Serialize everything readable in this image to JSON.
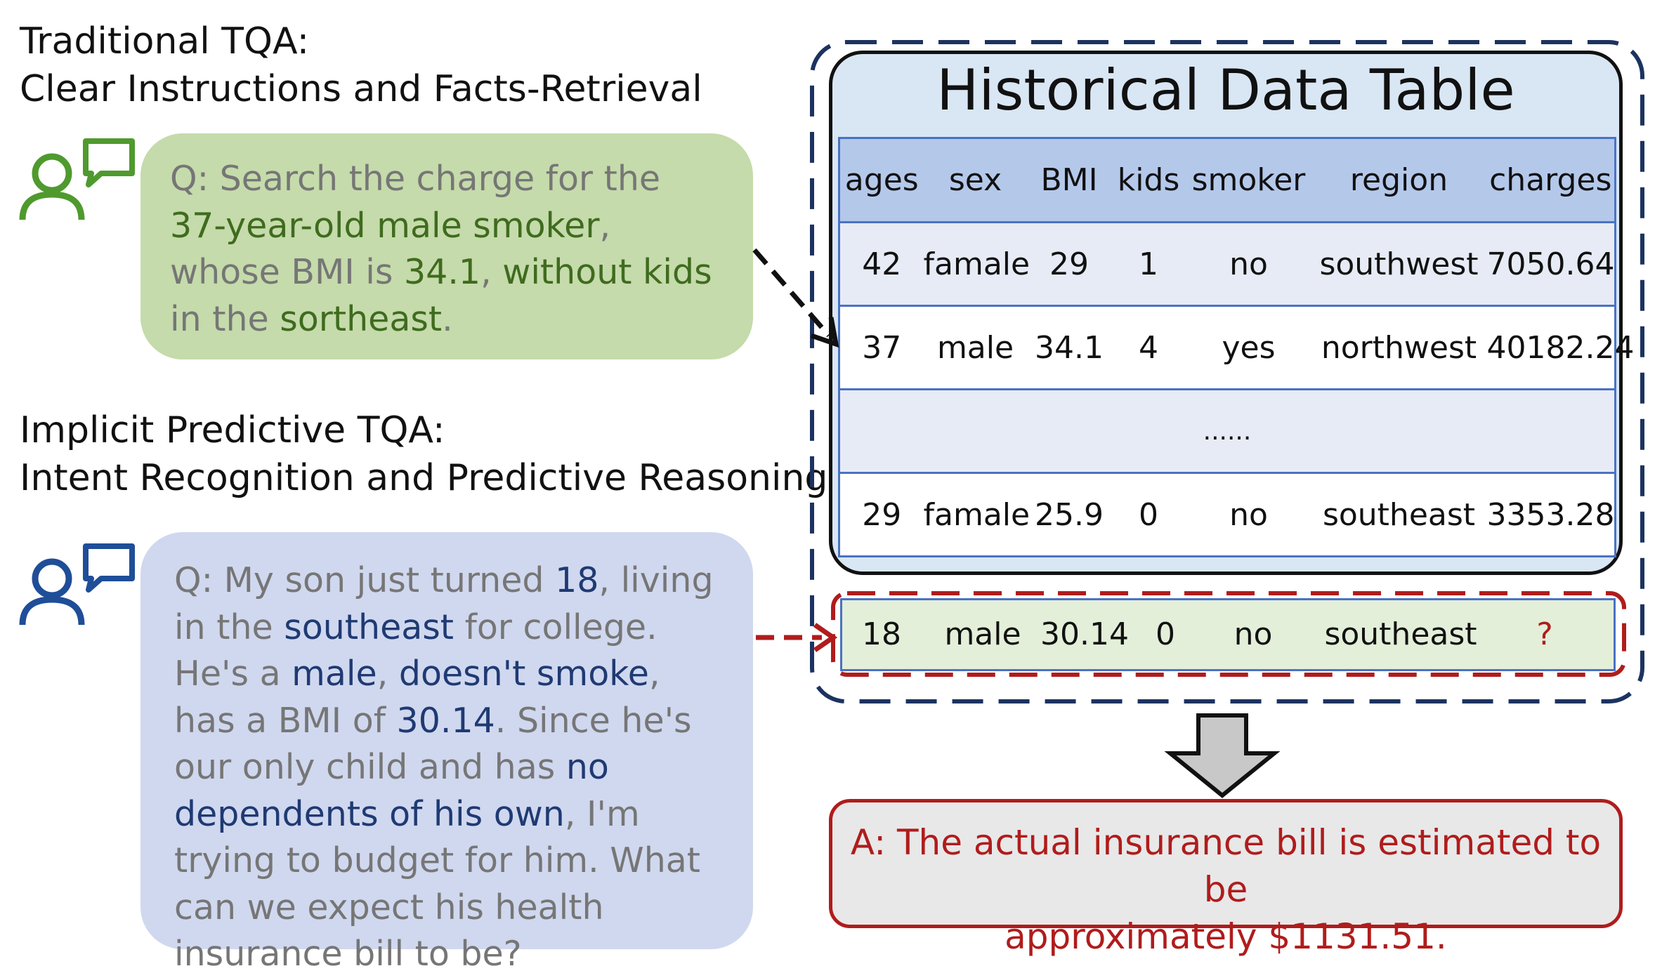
{
  "traditional": {
    "heading_line1": "Traditional TQA:",
    "heading_line2": "Clear Instructions and Facts-Retrieval",
    "question_parts": [
      {
        "text": "Q: Search the charge for the ",
        "hl": false
      },
      {
        "text": "37-year-old male smoker",
        "hl": true
      },
      {
        "text": ", whose BMI is ",
        "hl": false
      },
      {
        "text": "34.1",
        "hl": true
      },
      {
        "text": ", ",
        "hl": false
      },
      {
        "text": "without kids",
        "hl": true
      },
      {
        "text": " in the ",
        "hl": false
      },
      {
        "text": "sortheast",
        "hl": true
      },
      {
        "text": ".",
        "hl": false
      }
    ]
  },
  "implicit": {
    "heading_line1": "Implicit Predictive TQA:",
    "heading_line2": "Intent Recognition and Predictive Reasoning",
    "question_parts": [
      {
        "text": "Q: My son just turned ",
        "hl": false
      },
      {
        "text": "18",
        "hl": true
      },
      {
        "text": ", living in the ",
        "hl": false
      },
      {
        "text": "southeast",
        "hl": true
      },
      {
        "text": " for college. He's a ",
        "hl": false
      },
      {
        "text": "male",
        "hl": true
      },
      {
        "text": ", ",
        "hl": false
      },
      {
        "text": "doesn't smoke",
        "hl": true
      },
      {
        "text": ", has a BMI of ",
        "hl": false
      },
      {
        "text": "30.14",
        "hl": true
      },
      {
        "text": ". Since he's our only child and has ",
        "hl": false
      },
      {
        "text": "no dependents of his own",
        "hl": true
      },
      {
        "text": ", I'm trying to budget for him. What can we expect his health insurance bill to be?",
        "hl": false
      }
    ]
  },
  "table": {
    "title": "Historical Data Table",
    "headers": [
      "ages",
      "sex",
      "BMI",
      "kids",
      "smoker",
      "region",
      "charges"
    ],
    "rows": [
      [
        "42",
        "famale",
        "29",
        "1",
        "no",
        "southwest",
        "7050.64"
      ],
      [
        "37",
        "male",
        "34.1",
        "4",
        "yes",
        "northwest",
        "40182.24"
      ],
      [
        "......"
      ],
      [
        "29",
        "famale",
        "25.9",
        "0",
        "no",
        "southeast",
        "3353.28"
      ]
    ],
    "new_row": [
      "18",
      "male",
      "30.14",
      "0",
      "no",
      "southeast",
      "?"
    ]
  },
  "answer": {
    "line1": "A: The actual insurance bill  is estimated to be",
    "line2": "approximately $1131.51."
  },
  "colors": {
    "green_highlight": "#3f6b1e",
    "blue_highlight": "#1f3a73",
    "red": "#b01c1c",
    "navy_dash": "#1c3360",
    "table_border": "#4a72c4"
  }
}
